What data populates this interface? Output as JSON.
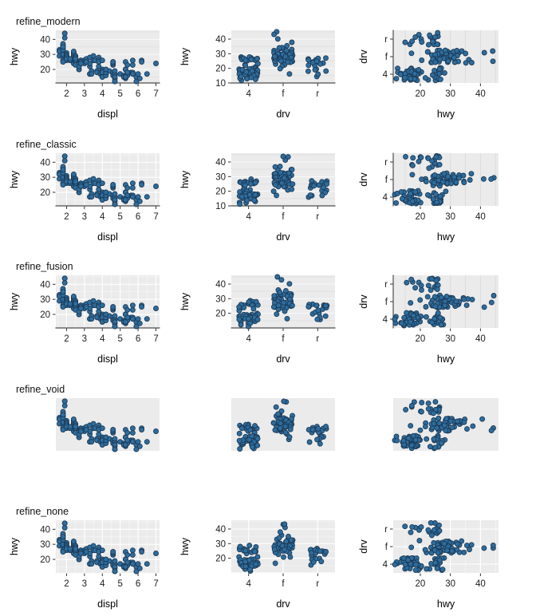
{
  "chart_data": {
    "type": "scatter",
    "description": "5x3 grid of scatter plots comparing ggplot themes on car data (displ, hwy, drv)",
    "columns": [
      "displ",
      "hwy",
      "drv"
    ],
    "drv_categories": [
      "4",
      "f",
      "r"
    ],
    "rows": [
      {
        "label": "refine_modern",
        "axes": true,
        "axis_line": true,
        "mid_yticks": [
          10,
          20,
          30,
          40
        ],
        "grid": {
          "c0": "h-stripe",
          "c1": "h-stripe",
          "c2": "v-gray"
        }
      },
      {
        "label": "refine_classic",
        "axes": true,
        "axis_line": true,
        "mid_yticks": [
          10,
          20,
          30,
          40
        ],
        "grid": {
          "c0": "hv-white",
          "c1": "h-stripe",
          "c2": "v-gray"
        }
      },
      {
        "label": "refine_fusion",
        "axes": true,
        "axis_line": true,
        "mid_yticks": [
          20,
          30,
          40
        ],
        "grid": {
          "c0": "hv-white",
          "c1": "h-stripe",
          "c2": "v-gray"
        }
      },
      {
        "label": "refine_void",
        "axes": false,
        "axis_line": false,
        "mid_yticks": [],
        "grid": {
          "c0": "none",
          "c1": "none",
          "c2": "none"
        }
      },
      {
        "label": "refine_none",
        "axes": true,
        "axis_line": false,
        "mid_yticks": [
          20,
          30,
          40
        ],
        "grid": {
          "c0": "hv-white",
          "c1": "hv-white",
          "c2": "hv-white"
        }
      }
    ],
    "panels": [
      {
        "xlab": "displ",
        "ylab": "hwy",
        "xticks": [
          2,
          3,
          4,
          5,
          6,
          7
        ],
        "yticks": [
          20,
          30,
          40
        ],
        "xlim": [
          1.4,
          7.2
        ],
        "ylim": [
          11,
          46
        ]
      },
      {
        "xlab": "drv",
        "ylab": "hwy",
        "xcats": [
          "4",
          "f",
          "r"
        ],
        "ylim": [
          10,
          46
        ]
      },
      {
        "xlab": "hwy",
        "ylab": "drv",
        "xticks": [
          20,
          30,
          40
        ],
        "ycats": [
          "r",
          "f",
          "4"
        ],
        "xlim": [
          11,
          46
        ]
      }
    ],
    "minor_ticks": {
      "hwy": [
        15,
        25,
        35,
        45
      ],
      "displ": [
        1.5,
        2.5,
        3.5,
        4.5,
        5.5,
        6.5
      ]
    },
    "style": {
      "panel_bg": "#ebebeb",
      "grid_major_white": "#ffffff",
      "grid_minor_white": "rgba(255,255,255,0.55)",
      "stripe_major": "#fafafa",
      "stripe_minor": "#e1e1e1",
      "vgrid_gray": "#dcdcdc",
      "axis_line_color": "#4d4d4d",
      "tick_color": "#333333",
      "point_fill": "#2e6d9d",
      "point_stroke": "#1c3a57",
      "point_radius": 3
    },
    "points": [
      [
        1.6,
        33,
        "f"
      ],
      [
        1.6,
        32,
        "f"
      ],
      [
        1.6,
        32,
        "f"
      ],
      [
        1.6,
        29,
        "f"
      ],
      [
        1.8,
        34,
        "f"
      ],
      [
        1.8,
        36,
        "f"
      ],
      [
        1.8,
        29,
        "f"
      ],
      [
        1.8,
        29,
        "f"
      ],
      [
        1.8,
        30,
        "f"
      ],
      [
        1.8,
        33,
        "f"
      ],
      [
        1.8,
        35,
        "f"
      ],
      [
        1.8,
        37,
        "f"
      ],
      [
        1.8,
        35,
        "f"
      ],
      [
        1.9,
        44,
        "f"
      ],
      [
        1.9,
        41,
        "f"
      ],
      [
        1.9,
        44,
        "f"
      ],
      [
        2.0,
        31,
        "f"
      ],
      [
        2.0,
        30,
        "f"
      ],
      [
        2.0,
        29,
        "f"
      ],
      [
        2.0,
        26,
        "f"
      ],
      [
        2.0,
        29,
        "f"
      ],
      [
        2.0,
        29,
        "f"
      ],
      [
        2.0,
        28,
        "f"
      ],
      [
        2.2,
        27,
        "f"
      ],
      [
        2.2,
        27,
        "f"
      ],
      [
        2.2,
        26,
        "f"
      ],
      [
        2.4,
        30,
        "f"
      ],
      [
        2.4,
        29,
        "f"
      ],
      [
        2.4,
        31,
        "f"
      ],
      [
        2.4,
        31,
        "f"
      ],
      [
        2.4,
        30,
        "f"
      ],
      [
        2.4,
        31,
        "f"
      ],
      [
        2.4,
        26,
        "f"
      ],
      [
        2.4,
        32,
        "f"
      ],
      [
        2.4,
        24,
        "f"
      ],
      [
        2.5,
        26,
        "f"
      ],
      [
        2.5,
        27,
        "f"
      ],
      [
        2.5,
        26,
        "f"
      ],
      [
        2.5,
        29,
        "f"
      ],
      [
        2.5,
        28,
        "f"
      ],
      [
        2.8,
        26,
        "f"
      ],
      [
        2.8,
        26,
        "f"
      ],
      [
        2.8,
        24,
        "f"
      ],
      [
        3.0,
        26,
        "f"
      ],
      [
        3.0,
        24,
        "f"
      ],
      [
        3.1,
        26,
        "f"
      ],
      [
        3.1,
        27,
        "f"
      ],
      [
        3.3,
        28,
        "f"
      ],
      [
        3.3,
        22,
        "f"
      ],
      [
        3.3,
        24,
        "f"
      ],
      [
        3.3,
        17,
        "f"
      ],
      [
        3.5,
        29,
        "f"
      ],
      [
        3.5,
        26,
        "f"
      ],
      [
        3.6,
        26,
        "f"
      ],
      [
        3.8,
        25,
        "f"
      ],
      [
        3.8,
        28,
        "f"
      ],
      [
        3.8,
        22,
        "f"
      ],
      [
        4.0,
        20,
        "f"
      ],
      [
        5.3,
        25,
        "f"
      ],
      [
        1.8,
        26,
        "4"
      ],
      [
        1.8,
        25,
        "4"
      ],
      [
        2.0,
        28,
        "4"
      ],
      [
        2.0,
        27,
        "4"
      ],
      [
        2.2,
        26,
        "4"
      ],
      [
        2.2,
        27,
        "4"
      ],
      [
        2.5,
        26,
        "4"
      ],
      [
        2.5,
        25,
        "4"
      ],
      [
        2.5,
        27,
        "4"
      ],
      [
        2.5,
        25,
        "4"
      ],
      [
        2.5,
        26,
        "4"
      ],
      [
        2.5,
        23,
        "4"
      ],
      [
        2.5,
        26,
        "4"
      ],
      [
        2.5,
        27,
        "4"
      ],
      [
        2.7,
        20,
        "4"
      ],
      [
        2.7,
        20,
        "4"
      ],
      [
        2.7,
        22,
        "4"
      ],
      [
        2.8,
        25,
        "4"
      ],
      [
        2.8,
        24,
        "4"
      ],
      [
        3.1,
        25,
        "4"
      ],
      [
        3.3,
        17,
        "4"
      ],
      [
        3.4,
        19,
        "4"
      ],
      [
        3.4,
        17,
        "4"
      ],
      [
        3.7,
        19,
        "4"
      ],
      [
        3.7,
        18,
        "4"
      ],
      [
        3.9,
        17,
        "4"
      ],
      [
        3.9,
        17,
        "4"
      ],
      [
        4.0,
        17,
        "4"
      ],
      [
        4.0,
        17,
        "4"
      ],
      [
        4.0,
        19,
        "4"
      ],
      [
        4.0,
        18,
        "4"
      ],
      [
        4.0,
        15,
        "4"
      ],
      [
        4.2,
        17,
        "4"
      ],
      [
        4.2,
        16,
        "4"
      ],
      [
        4.2,
        18,
        "4"
      ],
      [
        4.4,
        19,
        "4"
      ],
      [
        4.6,
        17,
        "4"
      ],
      [
        4.6,
        18,
        "4"
      ],
      [
        4.6,
        16,
        "4"
      ],
      [
        4.7,
        16,
        "4"
      ],
      [
        4.7,
        17,
        "4"
      ],
      [
        4.7,
        14,
        "4"
      ],
      [
        4.7,
        19,
        "4"
      ],
      [
        4.7,
        15,
        "4"
      ],
      [
        4.7,
        12,
        "4"
      ],
      [
        4.7,
        12,
        "4"
      ],
      [
        5.0,
        17,
        "4"
      ],
      [
        5.2,
        16,
        "4"
      ],
      [
        5.2,
        15,
        "4"
      ],
      [
        5.3,
        14,
        "4"
      ],
      [
        5.3,
        15,
        "4"
      ],
      [
        5.4,
        17,
        "4"
      ],
      [
        5.4,
        16,
        "4"
      ],
      [
        5.6,
        18,
        "4"
      ],
      [
        5.7,
        17,
        "4"
      ],
      [
        5.7,
        18,
        "4"
      ],
      [
        5.9,
        15,
        "4"
      ],
      [
        5.9,
        12,
        "4"
      ],
      [
        6.1,
        14,
        "4"
      ],
      [
        6.5,
        17,
        "4"
      ],
      [
        3.8,
        26,
        "r"
      ],
      [
        3.8,
        25,
        "r"
      ],
      [
        4.0,
        26,
        "r"
      ],
      [
        4.2,
        20,
        "r"
      ],
      [
        4.6,
        23,
        "r"
      ],
      [
        4.6,
        24,
        "r"
      ],
      [
        4.6,
        25,
        "r"
      ],
      [
        4.6,
        25,
        "r"
      ],
      [
        5.3,
        20,
        "r"
      ],
      [
        5.3,
        15,
        "r"
      ],
      [
        5.3,
        20,
        "r"
      ],
      [
        5.4,
        23,
        "r"
      ],
      [
        5.4,
        18,
        "r"
      ],
      [
        5.7,
        26,
        "r"
      ],
      [
        5.7,
        23,
        "r"
      ],
      [
        5.7,
        17,
        "r"
      ],
      [
        6.0,
        17,
        "r"
      ],
      [
        6.2,
        26,
        "r"
      ],
      [
        6.2,
        25,
        "r"
      ],
      [
        7.0,
        24,
        "r"
      ]
    ]
  }
}
